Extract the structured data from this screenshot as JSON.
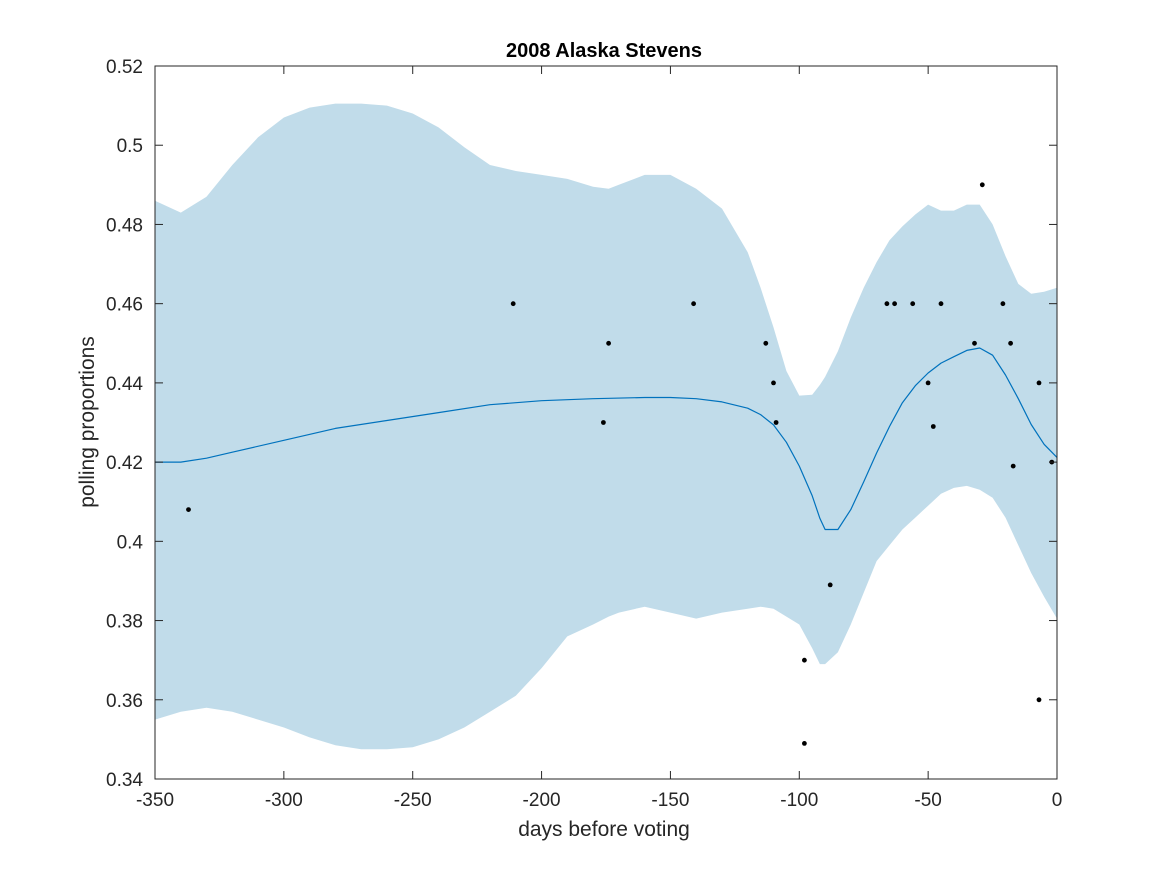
{
  "chart_data": {
    "type": "line",
    "title": "2008 Alaska Stevens",
    "xlabel": "days before voting",
    "ylabel": "polling proportions",
    "xlim": [
      -350,
      0
    ],
    "ylim": [
      0.34,
      0.52
    ],
    "xticks": [
      -350,
      -300,
      -250,
      -200,
      -150,
      -100,
      -50,
      0
    ],
    "yticks": [
      0.34,
      0.36,
      0.38,
      0.4,
      0.42,
      0.44,
      0.46,
      0.48,
      0.5,
      0.52
    ],
    "xtick_labels": [
      "-350",
      "-300",
      "-250",
      "-200",
      "-150",
      "-100",
      "-50",
      "0"
    ],
    "ytick_labels": [
      "0.34",
      "0.36",
      "0.38",
      "0.4",
      "0.42",
      "0.44",
      "0.46",
      "0.48",
      "0.5",
      "0.52"
    ],
    "grid": false,
    "colors": {
      "band": "#c1dcea",
      "line": "#0072bd",
      "points": "#000000",
      "axes": "#262626"
    },
    "series": [
      {
        "type": "area",
        "x": [
          -350,
          -340,
          -330,
          -320,
          -310,
          -300,
          -290,
          -280,
          -270,
          -260,
          -250,
          -240,
          -230,
          -220,
          -210,
          -200,
          -190,
          -180,
          -174,
          -170,
          -160,
          -150,
          -140,
          -130,
          -120,
          -115,
          -110,
          -105,
          -100,
          -95,
          -92,
          -90,
          -85,
          -80,
          -75,
          -70,
          -65,
          -60,
          -55,
          -50,
          -45,
          -40,
          -35,
          -30,
          -25,
          -20,
          -15,
          -10,
          -5,
          0
        ],
        "upper": [
          0.486,
          0.483,
          0.487,
          0.495,
          0.502,
          0.507,
          0.5095,
          0.5105,
          0.5105,
          0.51,
          0.508,
          0.5045,
          0.4995,
          0.495,
          0.4935,
          0.4925,
          0.4915,
          0.4895,
          0.489,
          0.49,
          0.4925,
          0.4925,
          0.489,
          0.484,
          0.473,
          0.464,
          0.454,
          0.443,
          0.4368,
          0.437,
          0.4395,
          0.4415,
          0.448,
          0.4565,
          0.464,
          0.4705,
          0.476,
          0.4795,
          0.4825,
          0.485,
          0.4835,
          0.4835,
          0.485,
          0.485,
          0.48,
          0.472,
          0.465,
          0.4625,
          0.463,
          0.464
        ],
        "lower": [
          0.355,
          0.357,
          0.358,
          0.357,
          0.355,
          0.353,
          0.3505,
          0.3485,
          0.3475,
          0.3475,
          0.348,
          0.35,
          0.353,
          0.357,
          0.361,
          0.368,
          0.376,
          0.379,
          0.381,
          0.382,
          0.3835,
          0.382,
          0.3805,
          0.382,
          0.383,
          0.3835,
          0.383,
          0.381,
          0.379,
          0.373,
          0.369,
          0.369,
          0.372,
          0.379,
          0.387,
          0.395,
          0.399,
          0.403,
          0.406,
          0.409,
          0.412,
          0.4135,
          0.414,
          0.413,
          0.411,
          0.406,
          0.399,
          0.392,
          0.386,
          0.3805
        ]
      },
      {
        "type": "line",
        "x": [
          -350,
          -340,
          -330,
          -320,
          -300,
          -280,
          -260,
          -240,
          -220,
          -200,
          -180,
          -160,
          -150,
          -140,
          -130,
          -120,
          -115,
          -110,
          -105,
          -100,
          -95,
          -92,
          -90,
          -85,
          -80,
          -75,
          -70,
          -65,
          -60,
          -55,
          -50,
          -45,
          -40,
          -35,
          -30,
          -25,
          -20,
          -15,
          -10,
          -5,
          0
        ],
        "y": [
          0.42,
          0.42,
          0.421,
          0.4225,
          0.4255,
          0.4285,
          0.4305,
          0.4325,
          0.4345,
          0.4355,
          0.436,
          0.4363,
          0.4363,
          0.436,
          0.4352,
          0.4336,
          0.432,
          0.4294,
          0.425,
          0.419,
          0.4115,
          0.4058,
          0.403,
          0.403,
          0.408,
          0.415,
          0.4223,
          0.429,
          0.435,
          0.4393,
          0.4425,
          0.445,
          0.4466,
          0.4482,
          0.4488,
          0.447,
          0.442,
          0.436,
          0.4295,
          0.4245,
          0.4212
        ]
      },
      {
        "type": "scatter",
        "x": [
          -337,
          -211,
          -176,
          -174,
          -141,
          -113,
          -110,
          -109,
          -98,
          -98,
          -88,
          -66,
          -63,
          -56,
          -50,
          -48,
          -45,
          -32,
          -29,
          -21,
          -18,
          -17,
          -7,
          -7,
          -2
        ],
        "y": [
          0.408,
          0.46,
          0.43,
          0.45,
          0.46,
          0.45,
          0.44,
          0.43,
          0.37,
          0.349,
          0.389,
          0.46,
          0.46,
          0.46,
          0.44,
          0.429,
          0.46,
          0.45,
          0.49,
          0.46,
          0.45,
          0.419,
          0.44,
          0.36,
          0.42
        ]
      }
    ]
  }
}
